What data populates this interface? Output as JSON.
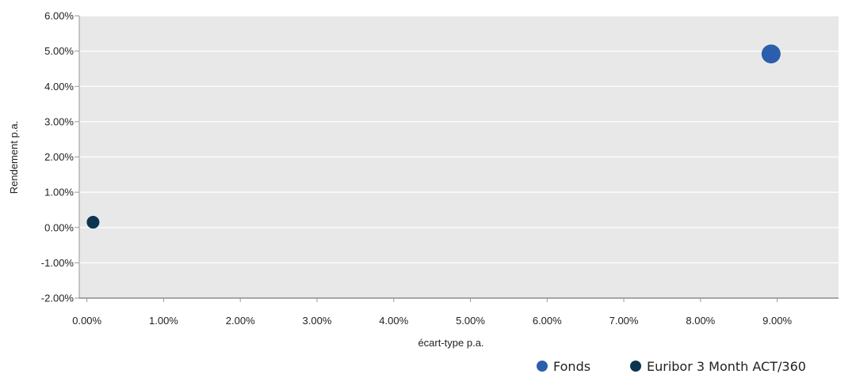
{
  "chart_data": {
    "type": "scatter",
    "xlabel": "écart-type p.a.",
    "ylabel": "Rendement p.a.",
    "xlim": [
      -0.1,
      9.8
    ],
    "ylim": [
      -2.0,
      6.0
    ],
    "x_ticks": [
      0,
      1,
      2,
      3,
      4,
      5,
      6,
      7,
      8,
      9
    ],
    "y_ticks": [
      6,
      5,
      4,
      3,
      2,
      1,
      0,
      -1,
      -2
    ],
    "x_tick_labels": [
      "0.00%",
      "1.00%",
      "2.00%",
      "3.00%",
      "4.00%",
      "5.00%",
      "6.00%",
      "7.00%",
      "8.00%",
      "9.00%"
    ],
    "y_tick_labels": [
      "6.00%",
      "5.00%",
      "4.00%",
      "3.00%",
      "2.00%",
      "1.00%",
      "0.00%",
      "-1.00%",
      "-2.00%"
    ],
    "grid": true,
    "legend_position": "bottom-right",
    "plot_background": "#e8e8e8",
    "series": [
      {
        "name": "Fonds",
        "color": "#2b5fad",
        "points": [
          {
            "x": 8.92,
            "y": 4.92
          }
        ]
      },
      {
        "name": "Euribor 3 Month ACT/360",
        "color": "#0d3451",
        "points": [
          {
            "x": 0.08,
            "y": 0.15
          }
        ]
      }
    ]
  }
}
